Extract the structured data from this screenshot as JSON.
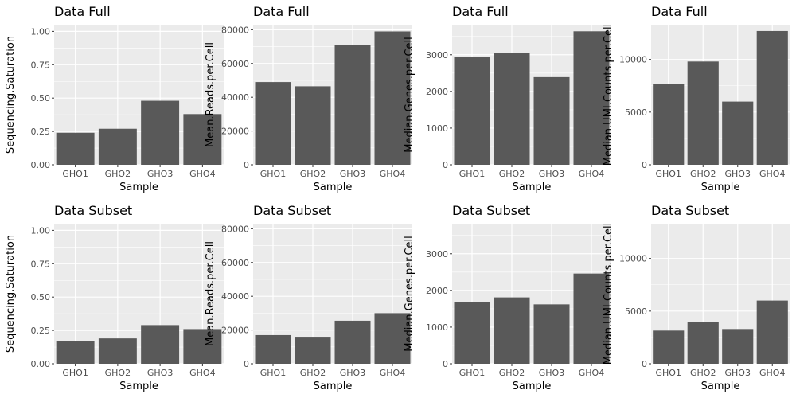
{
  "colors": {
    "panel_background": "#ebebeb",
    "grid_major": "#ffffff",
    "bar_fill": "#595959",
    "tick_text": "#4d4d4d",
    "text": "#000000"
  },
  "chart_data": [
    {
      "type": "bar",
      "title": "Data Full",
      "xlabel": "Sample",
      "ylabel": "Sequencing.Saturation",
      "categories": [
        "GHO1",
        "GHO2",
        "GHO3",
        "GHO4"
      ],
      "values": [
        0.24,
        0.27,
        0.48,
        0.38
      ],
      "ylim": [
        0,
        1.05
      ],
      "yticks": [
        0,
        0.25,
        0.5,
        0.75,
        1.0
      ],
      "ytick_labels": [
        "0.00",
        "0.25",
        "0.50",
        "0.75",
        "1.00"
      ],
      "grid": true
    },
    {
      "type": "bar",
      "title": "Data Full",
      "xlabel": "Sample",
      "ylabel": "Mean.Reads.per.Cell",
      "categories": [
        "GHO1",
        "GHO2",
        "GHO3",
        "GHO4"
      ],
      "values": [
        49000,
        46500,
        71000,
        79000
      ],
      "ylim": [
        0,
        83000
      ],
      "yticks": [
        0,
        20000,
        40000,
        60000,
        80000
      ],
      "ytick_labels": [
        "0",
        "20000",
        "40000",
        "60000",
        "80000"
      ],
      "grid": true
    },
    {
      "type": "bar",
      "title": "Data Full",
      "xlabel": "Sample",
      "ylabel": "Median.Genes.per.Cell",
      "categories": [
        "GHO1",
        "GHO2",
        "GHO3",
        "GHO4"
      ],
      "values": [
        2930,
        3050,
        2390,
        3640
      ],
      "ylim": [
        0,
        3820
      ],
      "yticks": [
        0,
        1000,
        2000,
        3000
      ],
      "ytick_labels": [
        "0",
        "1000",
        "2000",
        "3000"
      ],
      "grid": true
    },
    {
      "type": "bar",
      "title": "Data Full",
      "xlabel": "Sample",
      "ylabel": "Median.UMI.Counts.per.Cell",
      "categories": [
        "GHO1",
        "GHO2",
        "GHO3",
        "GHO4"
      ],
      "values": [
        7650,
        9800,
        6000,
        12700
      ],
      "ylim": [
        0,
        13300
      ],
      "yticks": [
        0,
        5000,
        10000
      ],
      "ytick_labels": [
        "0",
        "5000",
        "10000"
      ],
      "grid": true
    },
    {
      "type": "bar",
      "title": "Data Subset",
      "xlabel": "Sample",
      "ylabel": "Sequencing.Saturation",
      "categories": [
        "GHO1",
        "GHO2",
        "GHO3",
        "GHO4"
      ],
      "values": [
        0.17,
        0.19,
        0.29,
        0.26
      ],
      "ylim": [
        0,
        1.05
      ],
      "yticks": [
        0,
        0.25,
        0.5,
        0.75,
        1.0
      ],
      "ytick_labels": [
        "0.00",
        "0.25",
        "0.50",
        "0.75",
        "1.00"
      ],
      "grid": true
    },
    {
      "type": "bar",
      "title": "Data Subset",
      "xlabel": "Sample",
      "ylabel": "Mean.Reads.per.Cell",
      "categories": [
        "GHO1",
        "GHO2",
        "GHO3",
        "GHO4"
      ],
      "values": [
        17000,
        16000,
        25500,
        30000
      ],
      "ylim": [
        0,
        83000
      ],
      "yticks": [
        0,
        20000,
        40000,
        60000,
        80000
      ],
      "ytick_labels": [
        "0",
        "20000",
        "40000",
        "60000",
        "80000"
      ],
      "grid": true
    },
    {
      "type": "bar",
      "title": "Data Subset",
      "xlabel": "Sample",
      "ylabel": "Median.Genes.per.Cell",
      "categories": [
        "GHO1",
        "GHO2",
        "GHO3",
        "GHO4"
      ],
      "values": [
        1680,
        1810,
        1620,
        2460
      ],
      "ylim": [
        0,
        3820
      ],
      "yticks": [
        0,
        1000,
        2000,
        3000
      ],
      "ytick_labels": [
        "0",
        "1000",
        "2000",
        "3000"
      ],
      "grid": true
    },
    {
      "type": "bar",
      "title": "Data Subset",
      "xlabel": "Sample",
      "ylabel": "Median.UMI.Counts.per.Cell",
      "categories": [
        "GHO1",
        "GHO2",
        "GHO3",
        "GHO4"
      ],
      "values": [
        3150,
        3950,
        3300,
        6000
      ],
      "ylim": [
        0,
        13300
      ],
      "yticks": [
        0,
        5000,
        10000
      ],
      "ytick_labels": [
        "0",
        "5000",
        "10000"
      ],
      "grid": true
    }
  ]
}
